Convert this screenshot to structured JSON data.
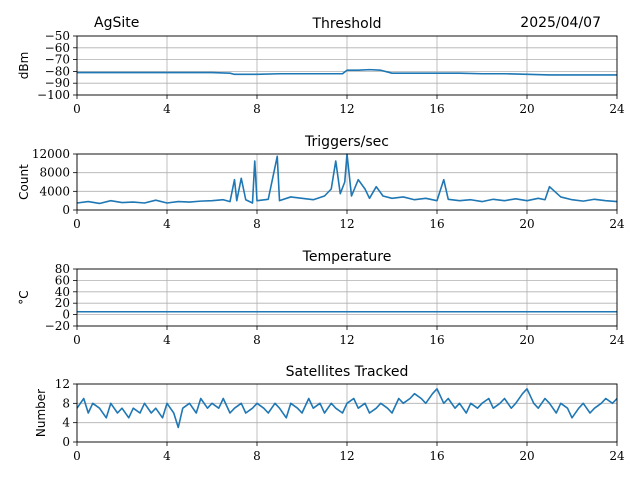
{
  "header": {
    "site": "AgSite",
    "date": "2025/04/07"
  },
  "colors": {
    "line": "#1f77b4",
    "grid": "#b0b0b0",
    "axis": "#000000"
  },
  "chart_data": [
    {
      "type": "line",
      "title": "Threshold",
      "ylabel": "dBm",
      "xlabel": "",
      "xlim": [
        0,
        24
      ],
      "ylim": [
        -100,
        -50
      ],
      "x_ticks": [
        0,
        4,
        8,
        12,
        16,
        20,
        24
      ],
      "y_ticks": [
        -100,
        -90,
        -80,
        -70,
        -60,
        -50
      ],
      "y_tick_labels": [
        "−100",
        "−90",
        "−80",
        "−70",
        "−60",
        "−50"
      ],
      "grid": true,
      "series": [
        {
          "x": [
            0,
            2,
            4,
            6,
            6.8,
            7,
            8,
            9,
            10,
            11,
            11.8,
            12,
            12.5,
            13,
            13.5,
            14,
            15,
            16,
            17,
            18,
            19,
            20,
            21,
            22,
            23,
            24
          ],
          "y": [
            -81,
            -81,
            -81,
            -81,
            -81.5,
            -82.5,
            -82.5,
            -82,
            -82,
            -82,
            -82,
            -79,
            -79,
            -78.5,
            -79,
            -81.5,
            -81.5,
            -81.5,
            -81.5,
            -82,
            -82,
            -82.5,
            -83,
            -83,
            -83,
            -83
          ]
        }
      ]
    },
    {
      "type": "line",
      "title": "Triggers/sec",
      "ylabel": "Count",
      "xlabel": "",
      "xlim": [
        0,
        24
      ],
      "ylim": [
        0,
        12000
      ],
      "x_ticks": [
        0,
        4,
        8,
        12,
        16,
        20,
        24
      ],
      "y_ticks": [
        0,
        4000,
        8000,
        12000
      ],
      "y_tick_labels": [
        "0",
        "4000",
        "8000",
        "12000"
      ],
      "grid": true,
      "series": [
        {
          "x": [
            0,
            0.5,
            1,
            1.5,
            2,
            2.5,
            3,
            3.5,
            4,
            4.5,
            5,
            5.5,
            6,
            6.5,
            6.8,
            7,
            7.1,
            7.3,
            7.5,
            7.8,
            7.9,
            8,
            8.5,
            8.9,
            9,
            9.5,
            10,
            10.5,
            11,
            11.3,
            11.5,
            11.7,
            11.9,
            12,
            12.2,
            12.5,
            12.8,
            13,
            13.3,
            13.6,
            14,
            14.5,
            15,
            15.5,
            16,
            16.3,
            16.5,
            17,
            17.5,
            18,
            18.5,
            19,
            19.5,
            20,
            20.5,
            20.8,
            21,
            21.5,
            22,
            22.5,
            23,
            23.5,
            24
          ],
          "y": [
            1500,
            1800,
            1400,
            2000,
            1600,
            1700,
            1500,
            2100,
            1500,
            1800,
            1700,
            1900,
            2000,
            2200,
            1800,
            6500,
            2000,
            6800,
            2200,
            1500,
            10500,
            2000,
            2300,
            11500,
            2000,
            2800,
            2500,
            2200,
            3000,
            4500,
            10500,
            3500,
            6000,
            12000,
            3000,
            6500,
            4500,
            2500,
            5000,
            3000,
            2500,
            2800,
            2200,
            2500,
            2000,
            6500,
            2300,
            2000,
            2200,
            1800,
            2300,
            2000,
            2400,
            2000,
            2500,
            2200,
            5000,
            2800,
            2200,
            1900,
            2300,
            2000,
            1800
          ]
        }
      ]
    },
    {
      "type": "line",
      "title": "Temperature",
      "ylabel": "°C",
      "xlabel": "",
      "xlim": [
        0,
        24
      ],
      "ylim": [
        -20,
        80
      ],
      "x_ticks": [
        0,
        4,
        8,
        12,
        16,
        20,
        24
      ],
      "y_ticks": [
        -20,
        0,
        20,
        40,
        60,
        80
      ],
      "y_tick_labels": [
        "−20",
        "0",
        "20",
        "40",
        "60",
        "80"
      ],
      "grid": true,
      "series": [
        {
          "x": [
            0,
            24
          ],
          "y": [
            5,
            5
          ]
        }
      ]
    },
    {
      "type": "line",
      "title": "Satellites Tracked",
      "ylabel": "Number",
      "xlabel": "",
      "xlim": [
        0,
        24
      ],
      "ylim": [
        0,
        12
      ],
      "x_ticks": [
        0,
        4,
        8,
        12,
        16,
        20,
        24
      ],
      "y_ticks": [
        0,
        4,
        8,
        12
      ],
      "y_tick_labels": [
        "0",
        "4",
        "8",
        "12"
      ],
      "grid": true,
      "series": [
        {
          "x": [
            0,
            0.3,
            0.5,
            0.7,
            1,
            1.3,
            1.5,
            1.8,
            2,
            2.3,
            2.5,
            2.8,
            3,
            3.3,
            3.5,
            3.8,
            4,
            4.3,
            4.5,
            4.7,
            5,
            5.3,
            5.5,
            5.8,
            6,
            6.3,
            6.5,
            6.8,
            7,
            7.3,
            7.5,
            7.8,
            8,
            8.3,
            8.5,
            8.8,
            9,
            9.3,
            9.5,
            9.8,
            10,
            10.3,
            10.5,
            10.8,
            11,
            11.3,
            11.5,
            11.8,
            12,
            12.3,
            12.5,
            12.8,
            13,
            13.3,
            13.5,
            13.8,
            14,
            14.3,
            14.5,
            14.8,
            15,
            15.3,
            15.5,
            15.8,
            16,
            16.3,
            16.5,
            16.8,
            17,
            17.3,
            17.5,
            17.8,
            18,
            18.3,
            18.5,
            18.8,
            19,
            19.3,
            19.5,
            19.8,
            20,
            20.3,
            20.5,
            20.8,
            21,
            21.3,
            21.5,
            21.8,
            22,
            22.3,
            22.5,
            22.8,
            23,
            23.3,
            23.5,
            23.8,
            24
          ],
          "y": [
            7,
            9,
            6,
            8,
            7,
            5,
            8,
            6,
            7,
            5,
            7,
            6,
            8,
            6,
            7,
            5,
            8,
            6,
            3,
            7,
            8,
            6,
            9,
            7,
            8,
            7,
            9,
            6,
            7,
            8,
            6,
            7,
            8,
            7,
            6,
            8,
            7,
            5,
            8,
            7,
            6,
            9,
            7,
            8,
            6,
            8,
            7,
            6,
            8,
            9,
            7,
            8,
            6,
            7,
            8,
            7,
            6,
            9,
            8,
            9,
            10,
            9,
            8,
            10,
            11,
            8,
            9,
            7,
            8,
            6,
            8,
            7,
            8,
            9,
            7,
            8,
            9,
            7,
            8,
            10,
            11,
            8,
            7,
            9,
            8,
            6,
            8,
            7,
            5,
            7,
            8,
            6,
            7,
            8,
            9,
            8,
            9
          ]
        }
      ]
    }
  ]
}
